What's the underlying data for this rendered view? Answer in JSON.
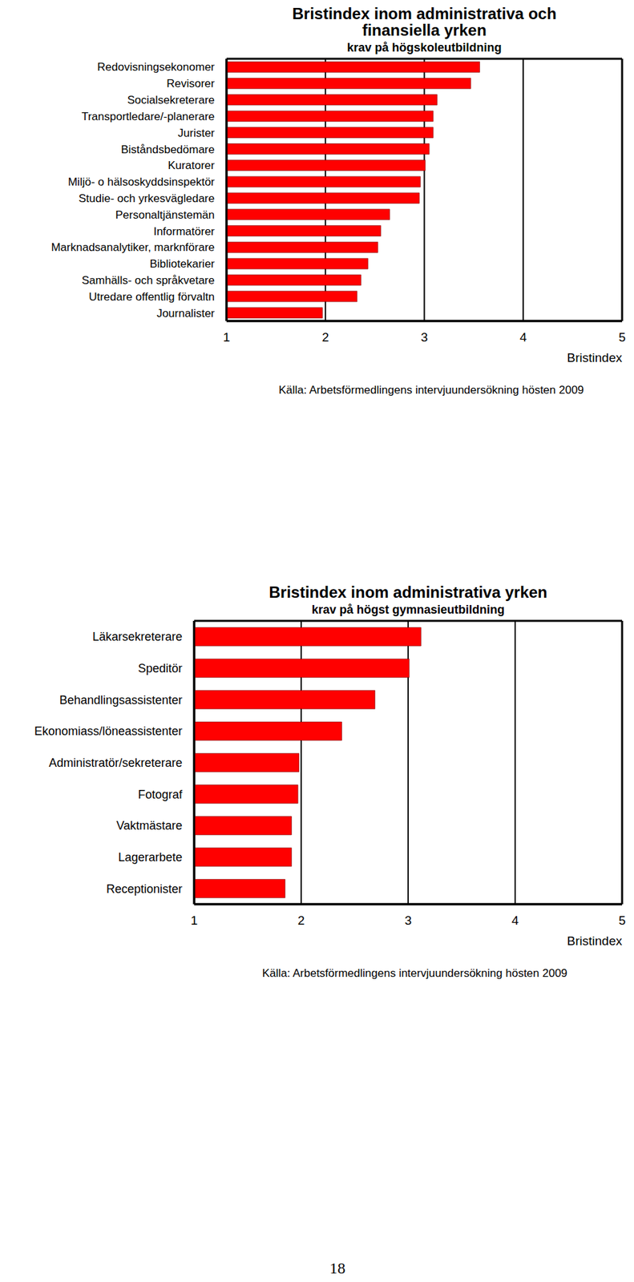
{
  "chart_data": [
    {
      "type": "bar",
      "title": "Bristindex inom administrativa och finansiella yrken",
      "subtitle": "krav på högskoleutbildning",
      "orientation": "horizontal",
      "categories": [
        "Redovisningsekonomer",
        "Revisorer",
        "Socialsekreterare",
        "Transportledare/-planerare",
        "Jurister",
        "Biståndsbedömare",
        "Kuratorer",
        "Miljö- o hälsoskyddsinspektör",
        "Studie- och yrkesvägledare",
        "Personaltjänstemän",
        "Informatörer",
        "Marknadsanalytiker, marknförare",
        "Bibliotekarier",
        "Samhälls- och språkvetare",
        "Utredare offentlig förvaltn",
        "Journalister"
      ],
      "values": [
        3.56,
        3.47,
        3.13,
        3.09,
        3.09,
        3.05,
        3.01,
        2.96,
        2.95,
        2.65,
        2.56,
        2.53,
        2.43,
        2.36,
        2.32,
        1.97
      ],
      "color": "#ff0000",
      "xlim": [
        1,
        5
      ],
      "xticks": [
        1,
        2,
        3,
        4,
        5
      ],
      "xlabel": "Bristindex",
      "grid": true,
      "source": "Källa: Arbetsförmedlingens intervjuundersökning hösten 2009"
    },
    {
      "type": "bar",
      "title": "Bristindex inom administrativa yrken",
      "subtitle": "krav på högst gymnasieutbildning",
      "orientation": "horizontal",
      "categories": [
        "Läkarsekreterare",
        "Speditör",
        "Behandlingsassistenter",
        "Ekonomiass/löneassistenter",
        "Administratör/sekreterare",
        "Fotograf",
        "Vaktmästare",
        "Lagerarbete",
        "Receptionister"
      ],
      "values": [
        3.12,
        3.01,
        2.69,
        2.38,
        1.98,
        1.97,
        1.91,
        1.91,
        1.85
      ],
      "color": "#ff0000",
      "xlim": [
        1,
        5
      ],
      "xticks": [
        1,
        2,
        3,
        4,
        5
      ],
      "xlabel": "Bristindex",
      "grid": true,
      "source": "Källa: Arbetsförmedlingens intervjuundersökning hösten 2009"
    }
  ],
  "page": {
    "number": "18"
  }
}
